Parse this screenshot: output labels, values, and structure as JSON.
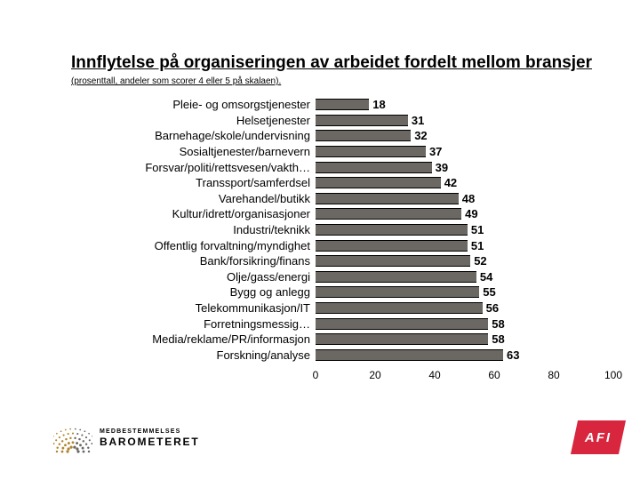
{
  "title": "Innflytelse på organiseringen av arbeidet fordelt mellom bransjer",
  "subtitle": "(prosenttall, andeler som scorer 4 eller 5 på skalaen).",
  "chart": {
    "type": "bar-horizontal",
    "xlim": [
      0,
      100
    ],
    "xtick_step": 20,
    "bar_color": "#6b6763",
    "bar_border": "#000000",
    "background_color": "#ffffff",
    "label_fontsize": 13,
    "value_fontsize": 13,
    "tick_fontsize": 12,
    "categories": [
      "Pleie- og omsorgstjenester",
      "Helsetjenester",
      "Barnehage/skole/undervisning",
      "Sosialtjenester/barnevern",
      "Forsvar/politi/rettsvesen/vakth…",
      "Transsport/samferdsel",
      "Varehandel/butikk",
      "Kultur/idrett/organisasjoner",
      "Industri/teknikk",
      "Offentlig forvaltning/myndighet",
      "Bank/forsikring/finans",
      "Olje/gass/energi",
      "Bygg og anlegg",
      "Telekommunikasjon/IT",
      "Forretningsmessig…",
      "Media/reklame/PR/informasjon",
      "Forskning/analyse"
    ],
    "values": [
      18,
      31,
      32,
      37,
      39,
      42,
      48,
      49,
      51,
      51,
      52,
      54,
      55,
      56,
      58,
      58,
      63
    ],
    "xticks": [
      0,
      20,
      40,
      60,
      80,
      100
    ]
  },
  "footer": {
    "brand_line1": "MEDBESTEMMELSES",
    "brand_line2": "BAROMETERET",
    "right_logo": "AFI",
    "right_logo_bg": "#d7263d",
    "burst_colors": [
      "#b0852e",
      "#6b6763"
    ]
  }
}
